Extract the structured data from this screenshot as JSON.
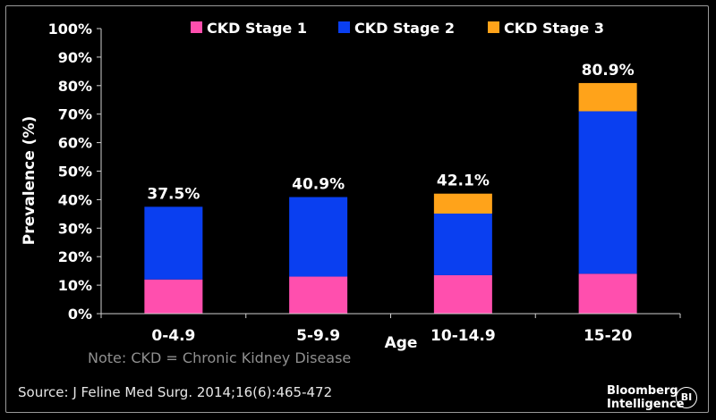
{
  "chart_data": {
    "type": "bar",
    "stacked": true,
    "categories": [
      "0-4.9",
      "5-9.9",
      "10-14.9",
      "15-20"
    ],
    "series": [
      {
        "name": "CKD Stage 1",
        "color": "#ff4fae",
        "values": [
          12,
          13,
          13.5,
          14
        ]
      },
      {
        "name": "CKD Stage 2",
        "color": "#0a3ff0",
        "values": [
          25.5,
          27.9,
          21.6,
          57
        ]
      },
      {
        "name": "CKD Stage 3",
        "color": "#ffa31a",
        "values": [
          0,
          0,
          7,
          9.9
        ]
      }
    ],
    "totals": [
      "37.5%",
      "40.9%",
      "42.1%",
      "80.9%"
    ],
    "yticks": [
      "0%",
      "10%",
      "20%",
      "30%",
      "40%",
      "50%",
      "60%",
      "70%",
      "80%",
      "90%",
      "100%"
    ],
    "ylim": [
      0,
      100
    ],
    "ylabel": "Prevalence (%)",
    "xlabel": "Age",
    "legend_position": "top"
  },
  "note": "Note: CKD = Chronic Kidney Disease",
  "source": "Source: J Feline Med Surg. 2014;16(6):465-472",
  "brand": {
    "line1": "Bloomberg",
    "line2": "Intelligence",
    "badge": "BI"
  }
}
